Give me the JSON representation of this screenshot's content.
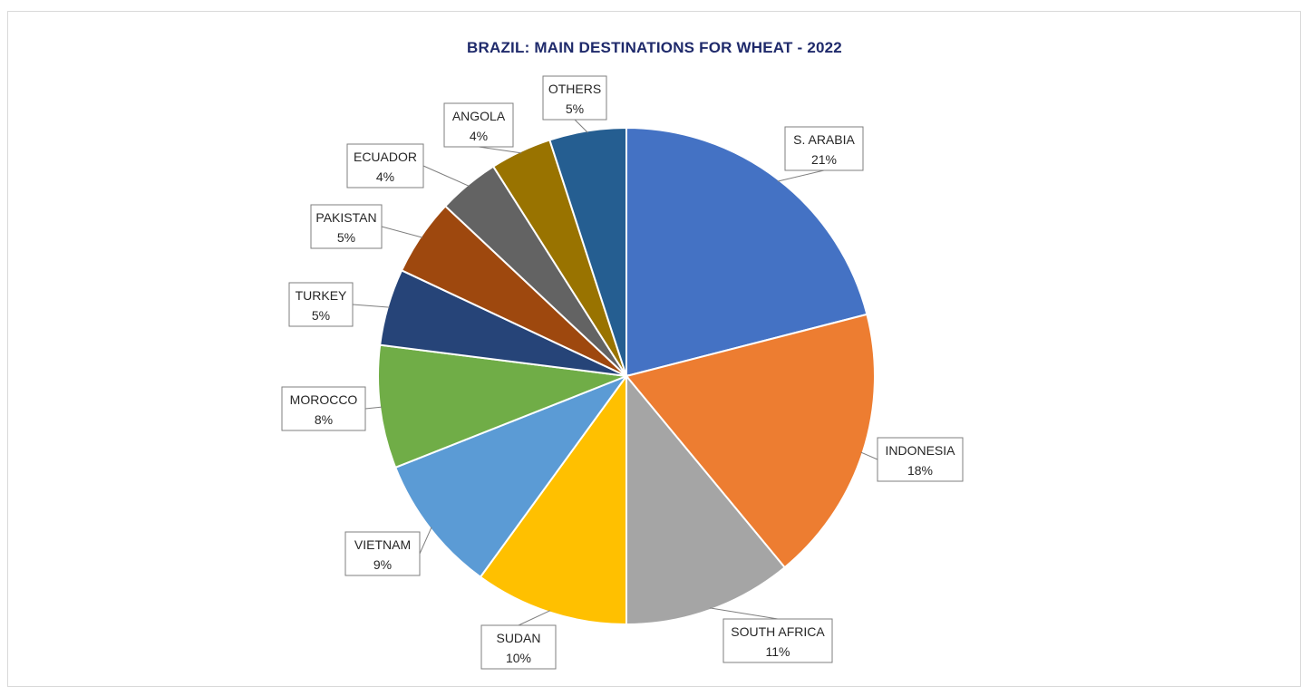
{
  "chart_data": {
    "type": "pie",
    "title": "BRAZIL: MAIN DESTINATIONS FOR WHEAT - 2022",
    "categories": [
      "S. ARABIA",
      "INDONESIA",
      "SOUTH AFRICA",
      "SUDAN",
      "VIETNAM",
      "MOROCCO",
      "TURKEY",
      "PAKISTAN",
      "ECUADOR",
      "ANGOLA",
      "OTHERS"
    ],
    "values": [
      21,
      18,
      11,
      10,
      9,
      8,
      5,
      5,
      4,
      4,
      5
    ],
    "value_labels": [
      "21%",
      "18%",
      "11%",
      "10%",
      "9%",
      "8%",
      "5%",
      "5%",
      "4%",
      "4%",
      "5%"
    ],
    "colors": [
      "#4472c4",
      "#ed7d31",
      "#a5a5a5",
      "#ffc000",
      "#5b9bd5",
      "#70ad47",
      "#264478",
      "#9e480e",
      "#636363",
      "#997300",
      "#255e91"
    ],
    "start_angle": "12 o'clock",
    "direction": "clockwise",
    "legend": "none",
    "data_labels": "callouts outside"
  }
}
